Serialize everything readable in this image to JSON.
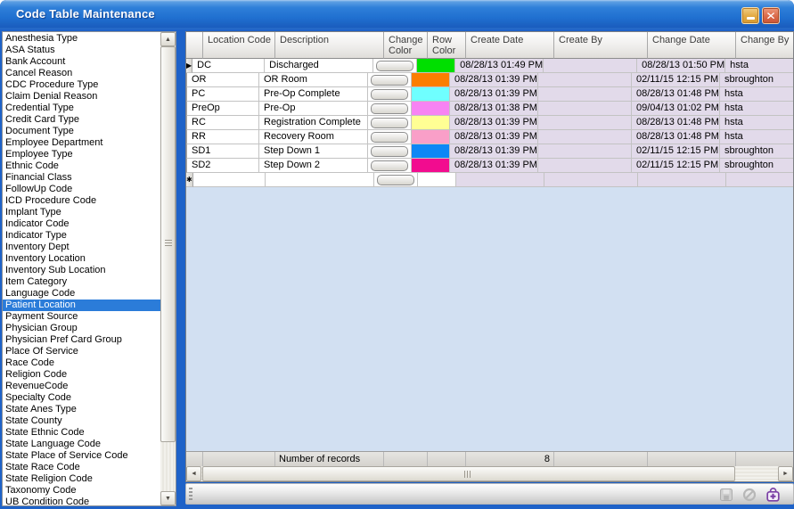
{
  "window": {
    "title": "Code Table Maintenance",
    "minimize_glyph": "",
    "close_glyph": "✕"
  },
  "colors": {
    "titlebar_blue": "#2070D0",
    "frame_blue": "#1E62C8",
    "selection_blue": "#2B7CD9",
    "readonly_cell": "#E2DAEA",
    "panel_fill": "#D2E0F2",
    "minimize_orange": "#E2A942",
    "close_red": "#DB6A49",
    "add_icon_purple": "#7B3FA5"
  },
  "sidebar": {
    "selected_index": 23,
    "items": [
      "Anesthesia Type",
      "ASA Status",
      "Bank Account",
      "Cancel Reason",
      "CDC Procedure Type",
      "Claim Denial Reason",
      "Credential Type",
      "Credit Card Type",
      "Document Type",
      "Employee Department",
      "Employee Type",
      "Ethnic Code",
      "Financial Class",
      "FollowUp Code",
      "ICD Procedure Code",
      "Implant Type",
      "Indicator Code",
      "Indicator Type",
      "Inventory Dept",
      "Inventory Location",
      "Inventory Sub Location",
      "Item Category",
      "Language Code",
      "Patient Location",
      "Payment Source",
      "Physician Group",
      "Physician Pref Card Group",
      "Place Of Service",
      "Race Code",
      "Religion Code",
      "RevenueCode",
      "Specialty Code",
      "State Anes Type",
      "State County",
      "State Ethnic Code",
      "State Language Code",
      "State Place of Service Code",
      "State Race Code",
      "State Religion Code",
      "Taxonomy Code",
      "UB Condition Code"
    ]
  },
  "grid": {
    "columns": [
      "",
      "Location Code",
      "Description",
      "Change Color",
      "Row Color",
      "Create Date",
      "Create By",
      "Change Date",
      "Change By"
    ],
    "current_row_index": 0,
    "current_row_marker": "▶",
    "new_row_marker": "✱",
    "change_color_button_label": "",
    "rows": [
      {
        "code": "DC",
        "description": "Discharged",
        "row_color": "#00DF00",
        "create_date": "08/28/13 01:49 PM",
        "create_by": "",
        "change_date": "08/28/13 01:50 PM",
        "change_by": "hsta"
      },
      {
        "code": "OR",
        "description": "OR Room",
        "row_color": "#FC7E00",
        "create_date": "08/28/13 01:39 PM",
        "create_by": "",
        "change_date": "02/11/15 12:15 PM",
        "change_by": "sbroughton"
      },
      {
        "code": "PC",
        "description": "Pre-Op Complete",
        "row_color": "#6FFFFF",
        "create_date": "08/28/13 01:39 PM",
        "create_by": "",
        "change_date": "08/28/13 01:48 PM",
        "change_by": "hsta"
      },
      {
        "code": "PreOp",
        "description": "Pre-Op",
        "row_color": "#F783F3",
        "create_date": "08/28/13 01:38 PM",
        "create_by": "",
        "change_date": "09/04/13 01:02 PM",
        "change_by": "hsta"
      },
      {
        "code": "RC",
        "description": "Registration Complete",
        "row_color": "#FFFF94",
        "create_date": "08/28/13 01:39 PM",
        "create_by": "",
        "change_date": "08/28/13 01:48 PM",
        "change_by": "hsta"
      },
      {
        "code": "RR",
        "description": "Recovery Room",
        "row_color": "#F99FC8",
        "create_date": "08/28/13 01:39 PM",
        "create_by": "",
        "change_date": "08/28/13 01:48 PM",
        "change_by": "hsta"
      },
      {
        "code": "SD1",
        "description": "Step Down 1",
        "row_color": "#0D87F5",
        "create_date": "08/28/13 01:39 PM",
        "create_by": "",
        "change_date": "02/11/15 12:15 PM",
        "change_by": "sbroughton"
      },
      {
        "code": "SD2",
        "description": "Step Down 2",
        "row_color": "#F20C8F",
        "create_date": "08/28/13 01:39 PM",
        "create_by": "",
        "change_date": "02/11/15 12:15 PM",
        "change_by": "sbroughton"
      }
    ],
    "summary": {
      "label": "Number of records",
      "value": "8"
    }
  },
  "toolbar": {
    "icons": [
      "save-icon",
      "cancel-icon",
      "add-record-icon"
    ]
  }
}
